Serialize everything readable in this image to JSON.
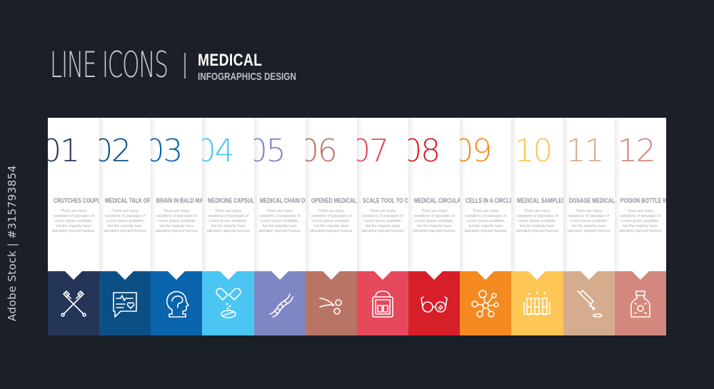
{
  "watermark": "Adobe Stock | #315793854",
  "header": {
    "title": "LINE ICONS",
    "subtitle": "MEDICAL",
    "tagline": "INFOGRAPHICS DESIGN"
  },
  "background_color": "#1b1f27",
  "items": [
    {
      "number": "01",
      "label": "CRUTCHES COUPLE",
      "color": "#243558",
      "icon": "crutches-icon"
    },
    {
      "number": "02",
      "label": "MEDICAL TALK OF",
      "color": "#0c4f85",
      "icon": "medical-chat-icon"
    },
    {
      "number": "03",
      "label": "BRAIN IN BALD MALE",
      "color": "#0a63ad",
      "icon": "brain-head-icon"
    },
    {
      "number": "04",
      "label": "MEDICINE CAPSULES",
      "color": "#4bc6f2",
      "icon": "capsules-icon"
    },
    {
      "number": "05",
      "label": "MEDICAL CHAIN OF",
      "color": "#7f86c4",
      "icon": "dna-icon"
    },
    {
      "number": "06",
      "label": "OPENED MEDICAL SCISSORS",
      "color": "#b87566",
      "icon": "scissors-icon"
    },
    {
      "number": "07",
      "label": "SCALE TOOL TO CONTROL",
      "color": "#e5495b",
      "icon": "scale-icon"
    },
    {
      "number": "08",
      "label": "MEDICAL CIRCULAR",
      "color": "#d71f2a",
      "icon": "glasses-icon"
    },
    {
      "number": "09",
      "label": "CELLS IN A CIRCLE",
      "color": "#f58a20",
      "icon": "cells-icon"
    },
    {
      "number": "10",
      "label": "MEDICAL SAMPLES",
      "color": "#fdc655",
      "icon": "test-tubes-icon"
    },
    {
      "number": "11",
      "label": "DOSAGE MEDICAL TOOL",
      "color": "#d5ad8e",
      "icon": "dropper-icon"
    },
    {
      "number": "12",
      "label": "POISON BOTTLE WITH",
      "color": "#d4877c",
      "icon": "poison-bottle-icon"
    }
  ],
  "description": "There are many variations of passages of Lorem Ipsum available, but the majority have alteration injected humour"
}
